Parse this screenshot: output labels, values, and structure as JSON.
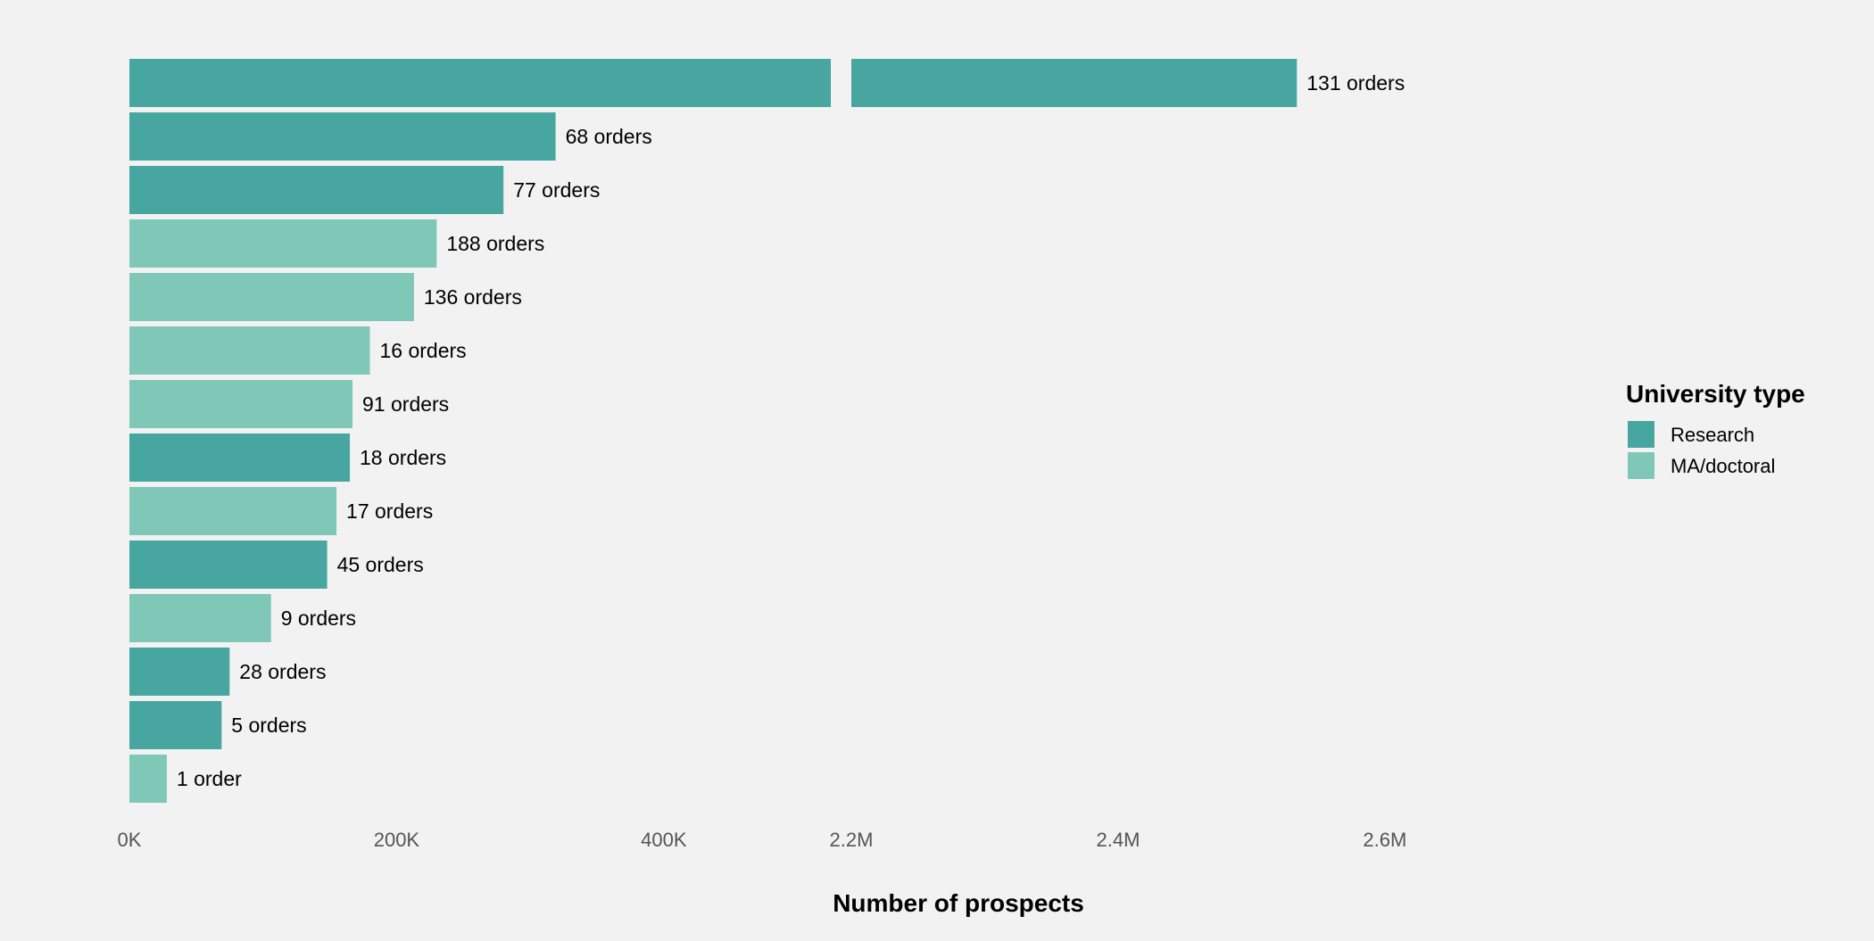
{
  "chart_data": {
    "type": "bar",
    "orientation": "horizontal",
    "broken_axis": true,
    "xlabel": "Number of prospects",
    "x_ticks_left": [
      "0K",
      "200K",
      "400K"
    ],
    "x_ticks_right": [
      "2.2M",
      "2.4M",
      "2.6M"
    ],
    "x_ticks_left_values": [
      0,
      200000,
      400000
    ],
    "x_ticks_right_values": [
      2200000,
      2400000,
      2600000
    ],
    "x_segments": [
      [
        0,
        525000
      ],
      [
        2200000,
        2580000
      ]
    ],
    "grid": false,
    "legend": {
      "title": "University type",
      "position": "right",
      "entries": [
        {
          "name": "Research",
          "color": "#47a69f"
        },
        {
          "name": "MA/doctoral",
          "color": "#7fc7b7"
        }
      ]
    },
    "bars": [
      {
        "value": 2534000,
        "type": "Research",
        "label": "131 orders"
      },
      {
        "value": 319000,
        "type": "Research",
        "label": "68 orders"
      },
      {
        "value": 280000,
        "type": "Research",
        "label": "77 orders"
      },
      {
        "value": 230000,
        "type": "MA/doctoral",
        "label": "188 orders"
      },
      {
        "value": 213000,
        "type": "MA/doctoral",
        "label": "136 orders"
      },
      {
        "value": 180000,
        "type": "MA/doctoral",
        "label": "16 orders"
      },
      {
        "value": 167000,
        "type": "MA/doctoral",
        "label": "91 orders"
      },
      {
        "value": 165000,
        "type": "Research",
        "label": "18 orders"
      },
      {
        "value": 155000,
        "type": "MA/doctoral",
        "label": "17 orders"
      },
      {
        "value": 148000,
        "type": "Research",
        "label": "45 orders"
      },
      {
        "value": 106000,
        "type": "MA/doctoral",
        "label": "9 orders"
      },
      {
        "value": 75000,
        "type": "Research",
        "label": "28 orders"
      },
      {
        "value": 69000,
        "type": "Research",
        "label": "5 orders"
      },
      {
        "value": 28000,
        "type": "MA/doctoral",
        "label": "1 order"
      }
    ]
  }
}
